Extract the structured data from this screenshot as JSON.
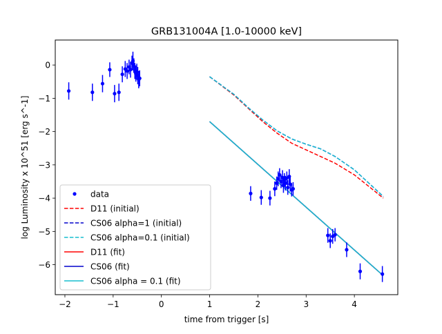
{
  "chart_data": {
    "type": "scatter",
    "title": "GRB131004A [1.0-10000 keV]",
    "xlabel": "time from trigger [s]",
    "ylabel": "log Luminosity x 10^51 [erg s^-1]",
    "xlim": [
      -2.2,
      4.9
    ],
    "ylim": [
      -6.9,
      0.75
    ],
    "xticks": [
      -2,
      -1,
      0,
      1,
      2,
      3,
      4
    ],
    "yticks": [
      -6,
      -5,
      -4,
      -3,
      -2,
      -1,
      0
    ],
    "xtick_labels": [
      "−2",
      "−1",
      "0",
      "1",
      "2",
      "3",
      "4"
    ],
    "ytick_labels": [
      "−6",
      "−5",
      "−4",
      "−3",
      "−2",
      "−1",
      "0"
    ],
    "grid": false,
    "legend_position": "lower-left",
    "data_series": {
      "name": "data",
      "color": "#0000ff",
      "points": [
        {
          "x": -1.92,
          "y": -0.78,
          "err": 0.26
        },
        {
          "x": -1.43,
          "y": -0.82,
          "err": 0.26
        },
        {
          "x": -1.22,
          "y": -0.56,
          "err": 0.26
        },
        {
          "x": -1.07,
          "y": -0.14,
          "err": 0.22
        },
        {
          "x": -0.97,
          "y": -0.86,
          "err": 0.26
        },
        {
          "x": -0.88,
          "y": -0.82,
          "err": 0.26
        },
        {
          "x": -0.81,
          "y": -0.28,
          "err": 0.24
        },
        {
          "x": -0.75,
          "y": -0.12,
          "err": 0.24
        },
        {
          "x": -0.71,
          "y": -0.18,
          "err": 0.24
        },
        {
          "x": -0.67,
          "y": -0.06,
          "err": 0.22
        },
        {
          "x": -0.64,
          "y": -0.14,
          "err": 0.24
        },
        {
          "x": -0.61,
          "y": 0.06,
          "err": 0.22
        },
        {
          "x": -0.59,
          "y": 0.12,
          "err": 0.28
        },
        {
          "x": -0.57,
          "y": -0.02,
          "err": 0.22
        },
        {
          "x": -0.55,
          "y": -0.18,
          "err": 0.24
        },
        {
          "x": -0.53,
          "y": -0.26,
          "err": 0.24
        },
        {
          "x": -0.51,
          "y": -0.2,
          "err": 0.24
        },
        {
          "x": -0.49,
          "y": -0.32,
          "err": 0.26
        },
        {
          "x": -0.47,
          "y": -0.44,
          "err": 0.26
        },
        {
          "x": -0.45,
          "y": -0.4,
          "err": 0.24
        },
        {
          "x": 1.85,
          "y": -3.86,
          "err": 0.22
        },
        {
          "x": 2.07,
          "y": -3.98,
          "err": 0.22
        },
        {
          "x": 2.25,
          "y": -4.0,
          "err": 0.22
        },
        {
          "x": 2.35,
          "y": -3.72,
          "err": 0.22
        },
        {
          "x": 2.39,
          "y": -3.55,
          "err": 0.2
        },
        {
          "x": 2.42,
          "y": -3.42,
          "err": 0.22
        },
        {
          "x": 2.45,
          "y": -3.3,
          "err": 0.2
        },
        {
          "x": 2.48,
          "y": -3.5,
          "err": 0.2
        },
        {
          "x": 2.51,
          "y": -3.38,
          "err": 0.22
        },
        {
          "x": 2.53,
          "y": -3.62,
          "err": 0.22
        },
        {
          "x": 2.55,
          "y": -3.45,
          "err": 0.2
        },
        {
          "x": 2.57,
          "y": -3.55,
          "err": 0.22
        },
        {
          "x": 2.6,
          "y": -3.4,
          "err": 0.2
        },
        {
          "x": 2.62,
          "y": -3.68,
          "err": 0.22
        },
        {
          "x": 2.65,
          "y": -3.35,
          "err": 0.22
        },
        {
          "x": 2.67,
          "y": -3.58,
          "err": 0.22
        },
        {
          "x": 2.7,
          "y": -3.75,
          "err": 0.2
        },
        {
          "x": 2.73,
          "y": -3.72,
          "err": 0.2
        },
        {
          "x": 3.45,
          "y": -5.12,
          "err": 0.22
        },
        {
          "x": 3.5,
          "y": -5.28,
          "err": 0.22
        },
        {
          "x": 3.55,
          "y": -5.15,
          "err": 0.22
        },
        {
          "x": 3.6,
          "y": -5.1,
          "err": 0.2
        },
        {
          "x": 3.84,
          "y": -5.55,
          "err": 0.22
        },
        {
          "x": 4.12,
          "y": -6.2,
          "err": 0.24
        },
        {
          "x": 4.58,
          "y": -6.28,
          "err": 0.24
        }
      ]
    },
    "series": [
      {
        "name": "D11 (initial)",
        "color": "#ff0000",
        "dash": true,
        "x": [
          1.0,
          1.5,
          1.8,
          2.1,
          2.4,
          2.7,
          3.0,
          3.3,
          3.6,
          4.0,
          4.3,
          4.6
        ],
        "y": [
          -0.35,
          -0.9,
          -1.3,
          -1.7,
          -2.05,
          -2.35,
          -2.55,
          -2.75,
          -2.95,
          -3.3,
          -3.65,
          -4.0
        ]
      },
      {
        "name": "CS06 alpha=1 (initial)",
        "color": "#0000cc",
        "dash": true,
        "x": [
          1.0,
          1.5,
          1.8,
          2.1,
          2.4,
          2.7,
          3.0,
          3.3,
          3.6,
          4.0,
          4.3,
          4.6
        ],
        "y": [
          -0.35,
          -0.88,
          -1.28,
          -1.65,
          -1.98,
          -2.22,
          -2.38,
          -2.52,
          -2.75,
          -3.15,
          -3.55,
          -3.95
        ]
      },
      {
        "name": "CS06 alpha=0.1 (initial)",
        "color": "#17becf",
        "dash": true,
        "x": [
          1.0,
          1.5,
          1.8,
          2.1,
          2.4,
          2.7,
          3.0,
          3.3,
          3.6,
          4.0,
          4.3,
          4.6
        ],
        "y": [
          -0.35,
          -0.88,
          -1.28,
          -1.65,
          -1.98,
          -2.22,
          -2.38,
          -2.52,
          -2.75,
          -3.15,
          -3.55,
          -3.95
        ]
      },
      {
        "name": "D11 (fit)",
        "color": "#ff0000",
        "dash": false,
        "x": [
          1.0,
          4.6
        ],
        "y": [
          -1.7,
          -6.33
        ]
      },
      {
        "name": "CS06 (fit)",
        "color": "#0000cc",
        "dash": false,
        "x": [
          1.0,
          4.6
        ],
        "y": [
          -1.7,
          -6.33
        ]
      },
      {
        "name": "CS06 alpha = 0.1 (fit)",
        "color": "#17becf",
        "dash": false,
        "x": [
          1.0,
          4.6
        ],
        "y": [
          -1.7,
          -6.33
        ]
      }
    ]
  }
}
